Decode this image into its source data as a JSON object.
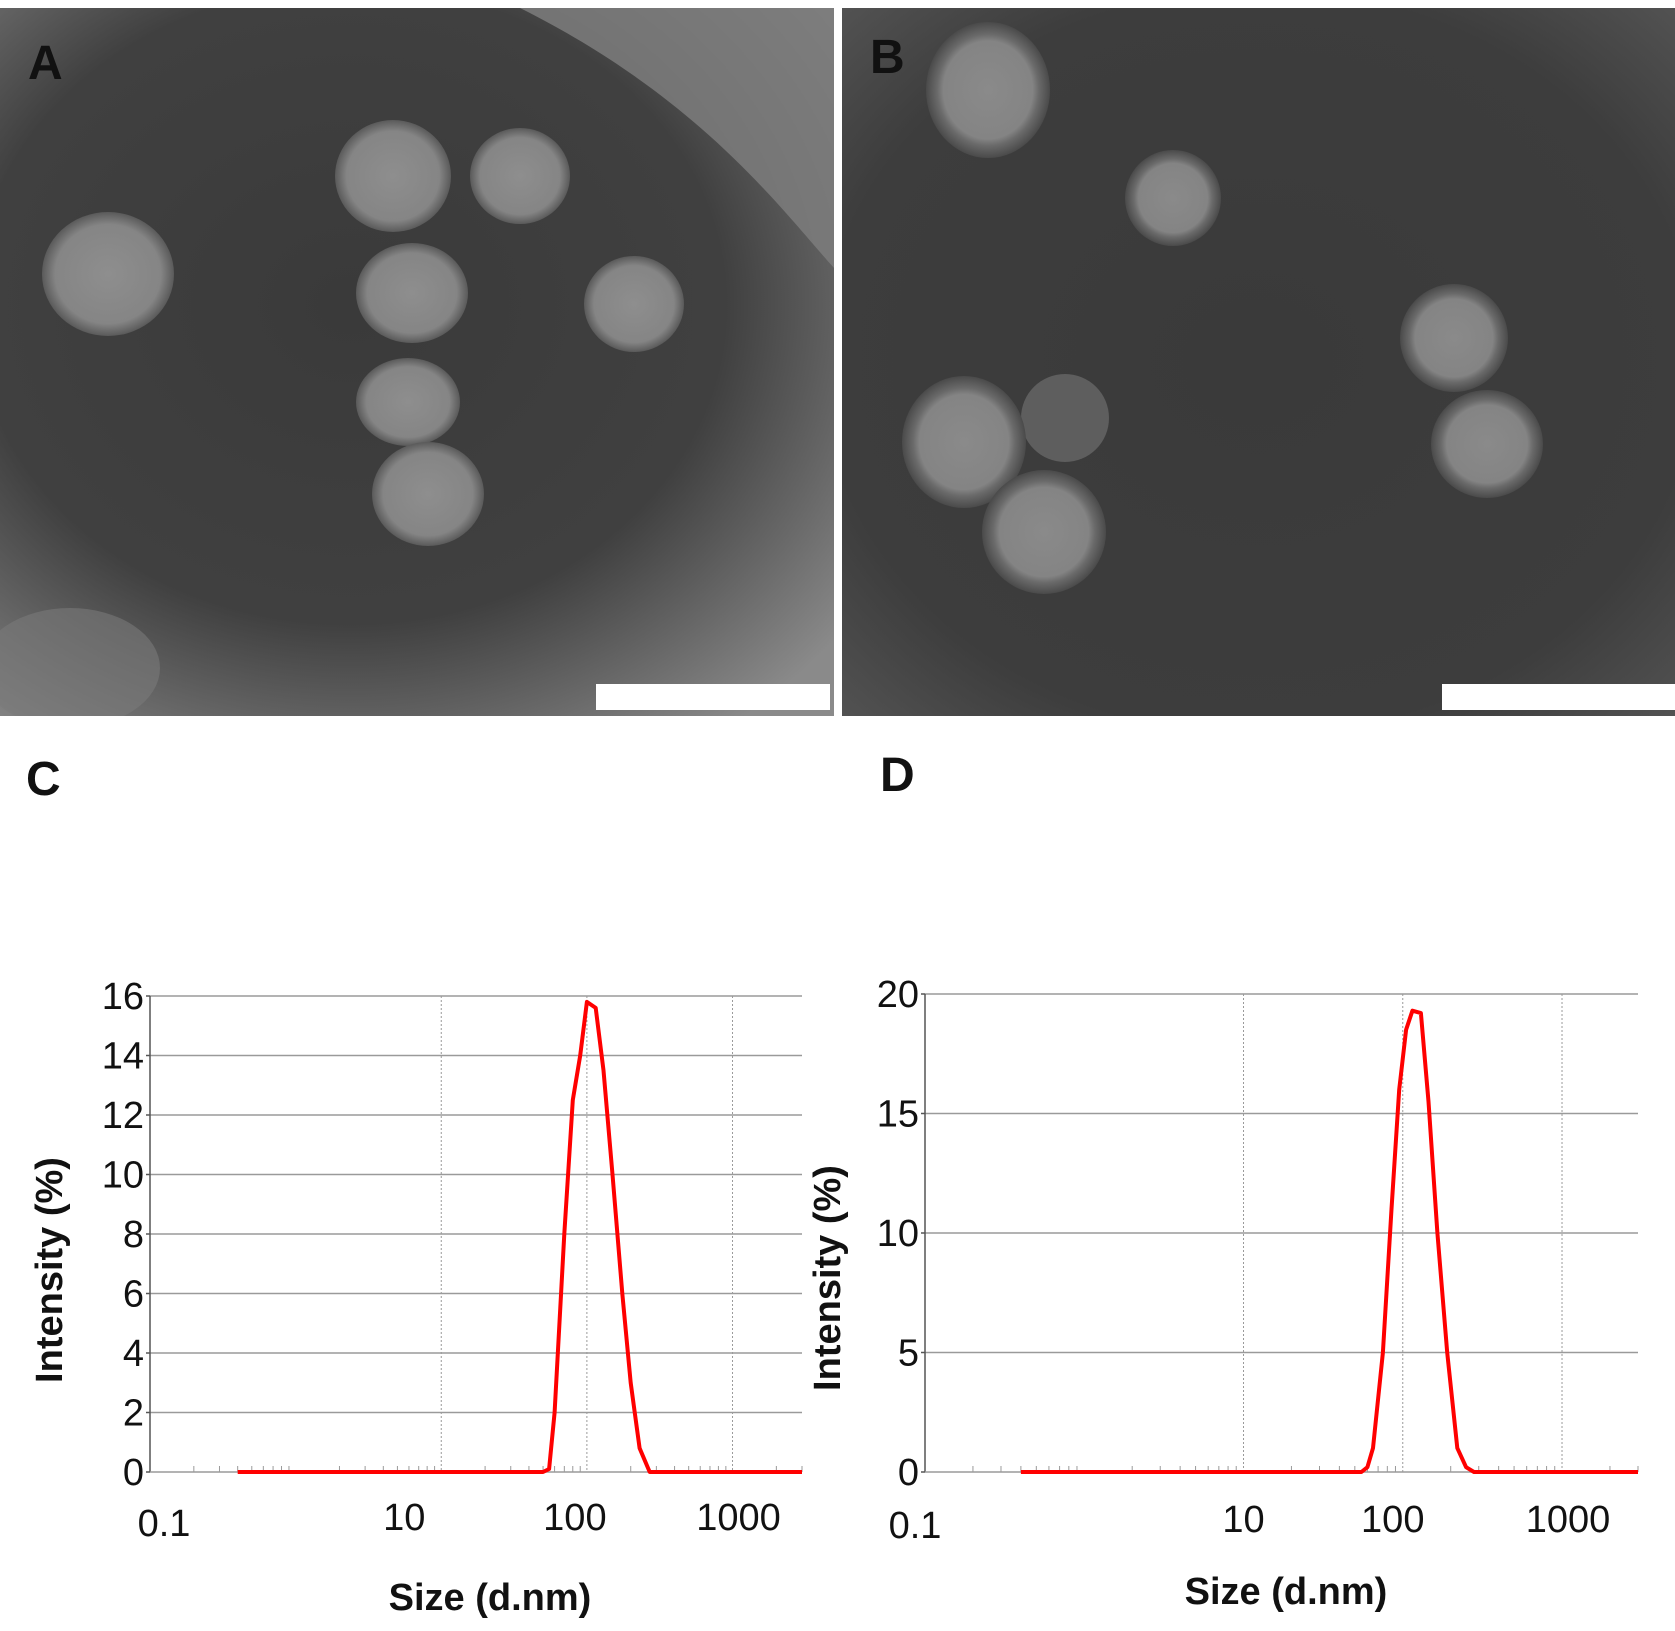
{
  "panels": {
    "a": {
      "letter": "A"
    },
    "b": {
      "letter": "B"
    },
    "c": {
      "letter": "C"
    },
    "d": {
      "letter": "D"
    }
  },
  "colors": {
    "curve": "#ff0000",
    "grid": "#9a9a9a",
    "axis": "#555555",
    "micrograph_bg_a": "#3b3b3b",
    "micrograph_bg_b": "#3a3a3a",
    "particle": "#8c8c8c",
    "scale_bar": "#ffffff"
  },
  "chart_data": [
    {
      "id": "C",
      "type": "line",
      "title": "",
      "xlabel": "Size (d.nm)",
      "ylabel": "Intensity (%)",
      "xscale": "log",
      "xlim": [
        0.1,
        3000
      ],
      "ylim": [
        0,
        16
      ],
      "x_ticks": [
        0.1,
        10,
        100,
        1000
      ],
      "x_tick_labels": [
        "0.1",
        "10",
        "100",
        "1000"
      ],
      "y_ticks": [
        0,
        2,
        4,
        6,
        8,
        10,
        12,
        14,
        16
      ],
      "y_tick_labels": [
        "0",
        "2",
        "4",
        "6",
        "8",
        "10",
        "12",
        "14",
        "16"
      ],
      "x_grid_lines": [
        10,
        100,
        1000
      ],
      "grid": true,
      "series": [
        {
          "color": "#ff0000",
          "x": [
            0.4,
            1,
            10,
            50,
            55,
            60,
            70,
            80,
            90,
            100,
            115,
            130,
            150,
            175,
            200,
            230,
            270,
            3000
          ],
          "y": [
            0,
            0,
            0,
            0,
            0.1,
            2,
            8,
            12.5,
            14,
            15.8,
            15.6,
            13.5,
            10,
            6,
            3,
            0.8,
            0,
            0
          ]
        }
      ]
    },
    {
      "id": "D",
      "type": "line",
      "title": "",
      "xlabel": "Size (d.nm)",
      "ylabel": "Intensity (%)",
      "xscale": "log",
      "xlim": [
        0.1,
        3000
      ],
      "ylim": [
        0,
        20
      ],
      "x_ticks": [
        0.1,
        10,
        100,
        1000
      ],
      "x_tick_labels": [
        "0.1",
        "10",
        "100",
        "1000"
      ],
      "y_ticks": [
        0,
        5,
        10,
        15,
        20
      ],
      "y_tick_labels": [
        "0",
        "5",
        "10",
        "15",
        "20"
      ],
      "x_grid_lines": [
        10,
        100,
        1000
      ],
      "grid": true,
      "series": [
        {
          "color": "#ff0000",
          "x": [
            0.4,
            1,
            10,
            55,
            60,
            65,
            75,
            85,
            95,
            105,
            115,
            130,
            145,
            165,
            190,
            220,
            250,
            280,
            3000
          ],
          "y": [
            0,
            0,
            0,
            0,
            0.2,
            1,
            5,
            11,
            16,
            18.5,
            19.3,
            19.2,
            15.5,
            10,
            5,
            1,
            0.2,
            0,
            0
          ]
        }
      ]
    }
  ]
}
